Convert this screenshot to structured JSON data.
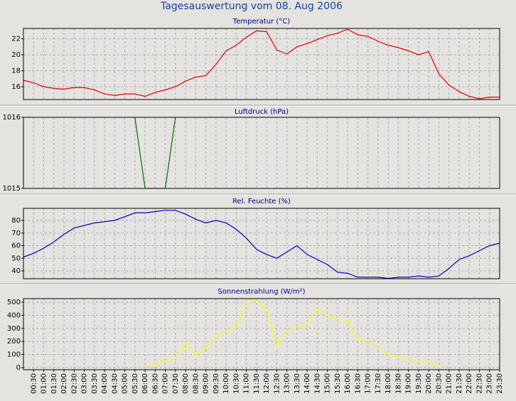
{
  "title": "Tagesauswertung vom 08. Aug 2006",
  "chart_data": [
    {
      "type": "line",
      "title": "Temperatur (°C)",
      "color": "#e00000",
      "values": [
        16.8,
        16.5,
        16.0,
        15.8,
        15.7,
        15.9,
        15.9,
        15.6,
        15.1,
        14.9,
        15.1,
        15.1,
        14.8,
        15.3,
        15.6,
        16.0,
        16.7,
        17.2,
        17.4,
        18.8,
        20.5,
        21.2,
        22.2,
        23.0,
        22.9,
        20.6,
        20.1,
        21.0,
        21.4,
        21.9,
        22.4,
        22.7,
        23.2,
        22.5,
        22.3,
        21.7,
        21.2,
        20.9,
        20.5,
        20.0,
        20.4,
        17.6,
        16.2,
        15.4,
        14.8,
        14.5,
        14.7,
        14.7
      ],
      "ylim": [
        14.4,
        23.3
      ],
      "yticks": [
        16,
        18,
        20,
        22
      ],
      "grid": true
    },
    {
      "type": "line",
      "title": "Luftdruck (hPa)",
      "color": "#007000",
      "values": [
        null,
        null,
        null,
        null,
        null,
        null,
        null,
        null,
        null,
        null,
        null,
        1016,
        1015,
        1015,
        1015,
        1016,
        null,
        null,
        null,
        null,
        null,
        null,
        null,
        null,
        null,
        null,
        null,
        null,
        null,
        null,
        null,
        null,
        null,
        null,
        null,
        null,
        null,
        null,
        null,
        null,
        null,
        null,
        null,
        null,
        null,
        null,
        null,
        null
      ],
      "ylim": [
        1015,
        1016
      ],
      "yticks": [
        1015,
        1016
      ],
      "grid": true
    },
    {
      "type": "line",
      "title": "Rel. Feuchte (%)",
      "color": "#0000c0",
      "values": [
        51,
        54,
        58,
        63,
        69,
        74,
        76,
        78,
        79,
        80,
        83,
        86,
        86,
        87,
        88,
        88,
        85,
        81,
        78,
        80,
        78,
        73,
        66,
        57,
        53,
        50,
        55,
        60,
        53,
        49,
        45,
        39,
        38,
        35,
        35,
        35,
        34,
        35,
        35,
        36,
        35,
        36,
        42,
        49,
        52,
        56,
        60,
        62
      ],
      "ylim": [
        33.8,
        89.6
      ],
      "yticks": [
        40,
        50,
        60,
        70,
        80
      ],
      "grid": true
    },
    {
      "type": "line",
      "title": "Sonnenstrahlung (W/m²)",
      "color": "#ffff00",
      "values": [
        null,
        null,
        null,
        null,
        null,
        null,
        null,
        null,
        null,
        null,
        null,
        null,
        10,
        30,
        50,
        70,
        190,
        90,
        150,
        230,
        280,
        310,
        500,
        510,
        450,
        160,
        280,
        310,
        330,
        450,
        400,
        370,
        360,
        220,
        200,
        150,
        100,
        80,
        60,
        40,
        50,
        0,
        null,
        null,
        null,
        null,
        null,
        null
      ],
      "ylim": [
        -16,
        527
      ],
      "yticks": [
        0,
        100,
        200,
        300,
        400,
        500
      ],
      "grid": true,
      "categories": [
        null,
        "00:30",
        "01:00",
        "01:30",
        "02:00",
        "02:30",
        "03:00",
        "03:30",
        "04:00",
        "04:30",
        "05:00",
        "05:30",
        "06:00",
        "06:30",
        "07:00",
        "07:30",
        "08:00",
        "08:30",
        "09:00",
        "09:30",
        "10:00",
        "10:30",
        "11:00",
        "11:30",
        "12:00",
        "12:30",
        "13:00",
        "13:30",
        "14:00",
        "14:30",
        "15:00",
        "15:30",
        "16:00",
        "16:30",
        "17:00",
        "17:30",
        "18:00",
        "18:30",
        "19:00",
        "19:30",
        "20:00",
        "20:30",
        "21:00",
        "21:30",
        "22:00",
        "22:30",
        "23:00",
        "23:30"
      ]
    }
  ]
}
